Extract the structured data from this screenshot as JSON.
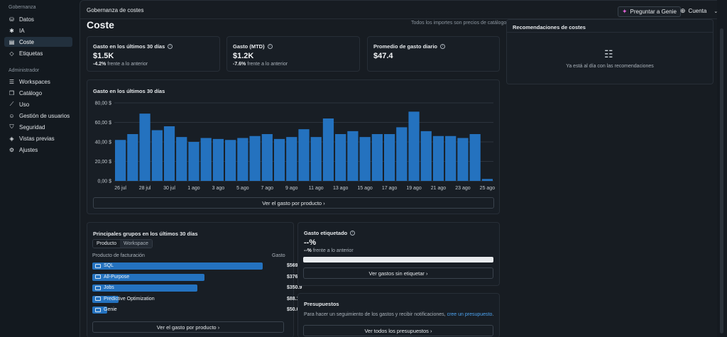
{
  "sidebar": {
    "section1": "Gobernanza",
    "items1": [
      {
        "label": "Datos",
        "icon": "database-icon",
        "glyph": "⛁"
      },
      {
        "label": "IA",
        "icon": "ai-icon",
        "glyph": "✱"
      },
      {
        "label": "Coste",
        "icon": "receipt-icon",
        "glyph": "▤"
      },
      {
        "label": "Etiquetas",
        "icon": "tag-icon",
        "glyph": "◇"
      }
    ],
    "section2": "Administrador",
    "items2": [
      {
        "label": "Workspaces",
        "icon": "workspaces-icon",
        "glyph": "☰"
      },
      {
        "label": "Catálogo",
        "icon": "catalog-icon",
        "glyph": "❒"
      },
      {
        "label": "Uso",
        "icon": "usage-chart-icon",
        "glyph": "⟋"
      },
      {
        "label": "Gestión de usuarios",
        "icon": "users-icon",
        "glyph": "☺"
      },
      {
        "label": "Seguridad",
        "icon": "shield-icon",
        "glyph": "⛉"
      },
      {
        "label": "Vistas previas",
        "icon": "preview-icon",
        "glyph": "◈"
      },
      {
        "label": "Ajustes",
        "icon": "gear-icon",
        "glyph": "⚙"
      }
    ]
  },
  "header": {
    "breadcrumb": "Gobernanza de costes",
    "genie_button": "Preguntar a Genie",
    "account": "Cuenta"
  },
  "page": {
    "title": "Coste",
    "note": "Todos los importes son precios de catálogo"
  },
  "kpis": [
    {
      "title": "Gasto en los últimos 30 días",
      "value": "$1.5K",
      "delta": "-4.2%",
      "delta_text": "frente a lo anterior"
    },
    {
      "title": "Gasto (MTD)",
      "value": "$1.2K",
      "delta": "-7.6%",
      "delta_text": "frente a lo anterior"
    },
    {
      "title": "Promedio de gasto diario",
      "value": "$47.4"
    }
  ],
  "chart": {
    "title": "Gasto en los últimos 30 días",
    "button": "Ver el gasto por producto"
  },
  "chart_data": {
    "type": "bar",
    "title": "Gasto en los últimos 30 días",
    "yticks": [
      "0,00 $",
      "20,00 $",
      "40,00 $",
      "60,00 $",
      "80,00 $"
    ],
    "ylim": [
      0,
      80
    ],
    "xticks": [
      "26 jul",
      "28 jul",
      "30 jul",
      "1 ago",
      "3 ago",
      "5 ago",
      "7 ago",
      "9 ago",
      "11 ago",
      "13 ago",
      "15 ago",
      "17 ago",
      "19 ago",
      "21 ago",
      "23 ago",
      "25 ago"
    ],
    "values": [
      42,
      48,
      69,
      52,
      56,
      45,
      40,
      44,
      43,
      42,
      44,
      46,
      48,
      43,
      45,
      53,
      45,
      64,
      48,
      51,
      45,
      48,
      48,
      55,
      71,
      51,
      46,
      46,
      44,
      48,
      2
    ],
    "color": "#2472bf",
    "grid": true
  },
  "top_groups": {
    "title": "Principales grupos en los últimos 30 días",
    "tabs": [
      "Producto",
      "Workspace"
    ],
    "col_product": "Producto de facturación",
    "col_spend": "Gasto",
    "rows": [
      {
        "label": "SQL",
        "value": "$569.5",
        "amount": 569.5,
        "icon": "sql-icon"
      },
      {
        "label": "All-Purpose",
        "value": "$376.0",
        "amount": 376.0,
        "icon": "compute-icon"
      },
      {
        "label": "Jobs",
        "value": "$350.9",
        "amount": 350.9,
        "icon": "jobs-icon"
      },
      {
        "label": "Predictive Optimization",
        "value": "$88.1",
        "amount": 88.1,
        "icon": "optimization-icon"
      },
      {
        "label": "Genie",
        "value": "$50.0",
        "amount": 50.0,
        "icon": "genie-icon"
      }
    ],
    "button": "Ver el gasto por producto"
  },
  "tagged": {
    "title": "Gasto etiquetado",
    "value": "--%",
    "delta": "--%",
    "delta_text": "frente a lo anterior",
    "button": "Ver gastos sin etiquetar"
  },
  "budgets": {
    "title": "Presupuestos",
    "text": "Para hacer un seguimiento de los gastos y recibir notificaciones,",
    "link": "cree un presupuesto",
    "button": "Ver todos los presupuestos"
  },
  "recommendations": {
    "title": "Recomendaciones de costes",
    "empty": "Ya está al día con las recomendaciones"
  }
}
